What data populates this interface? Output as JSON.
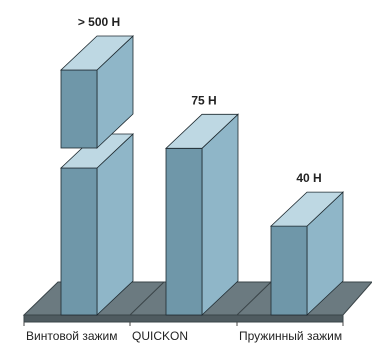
{
  "chart_data": {
    "type": "bar",
    "categories": [
      "Винтовой зажим",
      "QUICKON",
      "Пружинный зажим"
    ],
    "values": [
      500,
      75,
      40
    ],
    "value_labels": [
      "> 500 Н",
      "75 Н",
      "40 Н"
    ],
    "axis_break_on_first_bar": true,
    "style": "3d"
  },
  "colors": {
    "bar_front": "#6f97a9",
    "bar_side": "#8fb6c8",
    "bar_top": "#bed8e3",
    "bar_stroke": "#1e2a30",
    "floor": "#6b7a80",
    "floor_stroke": "#3a4448"
  }
}
